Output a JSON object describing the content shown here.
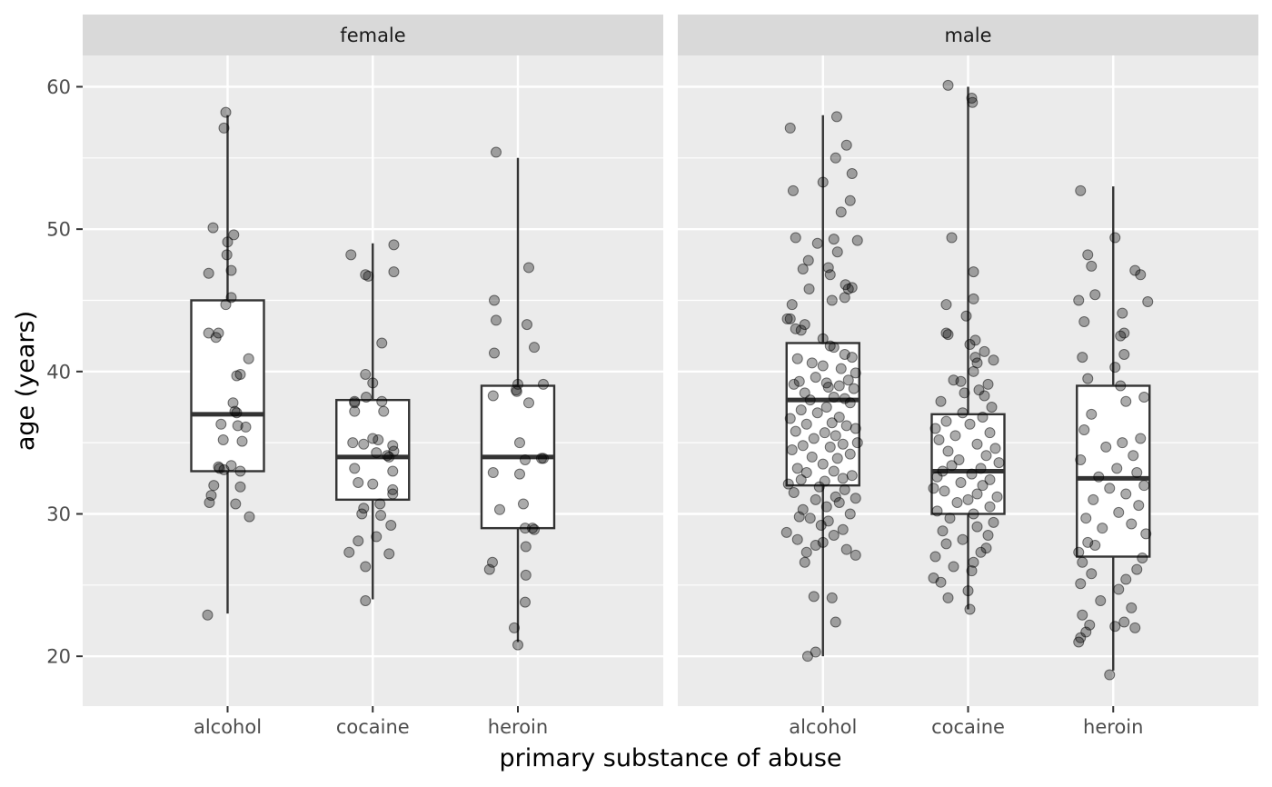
{
  "chart_data": {
    "type": "boxplot-jitter",
    "xlabel": "primary substance of abuse",
    "ylabel": "age (years)",
    "ylim": [
      16.5,
      62.2
    ],
    "yticks": [
      20,
      30,
      40,
      50,
      60
    ],
    "categories": [
      "alcohol",
      "cocaine",
      "heroin"
    ],
    "panels": [
      {
        "facet": "female",
        "boxes": [
          {
            "category": "alcohol",
            "whisker_low": 23,
            "q1": 33,
            "median": 37,
            "q3": 45,
            "whisker_high": 58
          },
          {
            "category": "cocaine",
            "whisker_low": 24,
            "q1": 31,
            "median": 34,
            "q3": 38,
            "whisker_high": 49
          },
          {
            "category": "heroin",
            "whisker_low": 21,
            "q1": 29,
            "median": 34,
            "q3": 39,
            "whisker_high": 55
          }
        ],
        "points": [
          {
            "category": "alcohol",
            "values": [
              58.2,
              57.1,
              50.1,
              49.6,
              49.1,
              48.2,
              47.1,
              46.9,
              45.2,
              44.7,
              42.7,
              42.7,
              42.4,
              40.9,
              39.8,
              39.7,
              37.8,
              37.2,
              37.1,
              36.3,
              36.2,
              36.1,
              35.2,
              35.1,
              33.4,
              33.3,
              33.2,
              33.1,
              33.0,
              32.0,
              31.9,
              31.3,
              30.8,
              30.7,
              29.8,
              22.9
            ],
            "offsets": [
              -0.05,
              -0.1,
              -0.4,
              0.17,
              0.0,
              -0.02,
              0.1,
              -0.52,
              0.1,
              -0.05,
              -0.52,
              -0.25,
              -0.32,
              0.58,
              0.35,
              0.25,
              0.15,
              0.2,
              0.25,
              -0.18,
              0.28,
              0.5,
              -0.12,
              0.4,
              0.1,
              -0.25,
              -0.22,
              -0.1,
              0.35,
              -0.38,
              0.35,
              -0.45,
              -0.5,
              0.22,
              0.6,
              -0.55
            ]
          },
          {
            "category": "cocaine",
            "values": [
              48.9,
              48.2,
              47.0,
              46.8,
              46.7,
              42.0,
              39.8,
              39.2,
              38.2,
              37.9,
              37.9,
              37.8,
              37.2,
              37.2,
              35.3,
              35.2,
              35.0,
              34.9,
              34.8,
              34.4,
              34.3,
              34.1,
              34.0,
              33.2,
              33.0,
              32.2,
              32.1,
              31.7,
              31.4,
              30.7,
              30.4,
              30.0,
              29.9,
              29.2,
              28.4,
              28.1,
              27.3,
              27.2,
              26.3,
              23.9
            ],
            "offsets": [
              0.58,
              -0.6,
              0.58,
              -0.2,
              -0.12,
              0.25,
              -0.2,
              0.0,
              -0.18,
              -0.5,
              0.25,
              -0.5,
              0.3,
              -0.5,
              0.0,
              0.15,
              -0.55,
              -0.25,
              0.55,
              0.58,
              0.1,
              0.4,
              0.45,
              -0.5,
              0.55,
              -0.4,
              0.0,
              0.55,
              0.55,
              0.2,
              -0.25,
              -0.3,
              0.22,
              0.5,
              0.1,
              -0.4,
              -0.65,
              0.45,
              -0.2,
              -0.2
            ],
            "note": "jittered points"
          },
          {
            "category": "heroin",
            "values": [
              55.4,
              47.3,
              45.0,
              43.6,
              43.3,
              41.7,
              41.3,
              39.1,
              39.1,
              38.7,
              38.6,
              38.3,
              37.8,
              35.0,
              33.9,
              33.9,
              33.8,
              32.9,
              32.8,
              30.7,
              30.3,
              29.0,
              29.0,
              28.9,
              27.7,
              26.6,
              26.1,
              25.7,
              23.8,
              22.0,
              20.8
            ],
            "offsets": [
              -0.6,
              0.3,
              -0.65,
              -0.6,
              0.25,
              0.45,
              -0.65,
              0.0,
              0.7,
              -0.05,
              -0.03,
              -0.68,
              0.3,
              0.05,
              0.65,
              0.7,
              0.2,
              -0.68,
              0.05,
              0.15,
              -0.5,
              0.2,
              0.4,
              0.45,
              0.22,
              -0.7,
              -0.78,
              0.22,
              0.2,
              -0.1,
              0.0
            ]
          }
        ]
      },
      {
        "facet": "male",
        "boxes": [
          {
            "category": "alcohol",
            "whisker_low": 20,
            "q1": 32,
            "median": 38,
            "q3": 42,
            "whisker_high": 58
          },
          {
            "category": "cocaine",
            "whisker_low": 23.3,
            "q1": 30,
            "median": 33,
            "q3": 37,
            "whisker_high": 60
          },
          {
            "category": "heroin",
            "whisker_low": 19,
            "q1": 27,
            "median": 32.5,
            "q3": 39,
            "whisker_high": 53
          }
        ],
        "points": [
          {
            "category": "alcohol",
            "values": [
              57.9,
              57.1,
              55.9,
              55.0,
              53.9,
              53.3,
              52.7,
              52.0,
              51.2,
              49.4,
              49.3,
              49.2,
              49.0,
              48.4,
              47.8,
              47.3,
              47.2,
              46.8,
              46.1,
              45.9,
              45.8,
              45.8,
              45.2,
              45.0,
              44.7,
              43.7,
              43.7,
              43.3,
              43.0,
              42.9,
              42.3,
              41.8,
              41.7,
              41.2,
              41.0,
              40.9,
              40.6,
              40.4,
              40.2,
              39.9,
              39.6,
              39.4,
              39.3,
              39.2,
              39.1,
              39.0,
              38.9,
              38.8,
              38.5,
              38.2,
              38.1,
              38.0,
              37.8,
              37.5,
              37.3,
              37.1,
              36.8,
              36.7,
              36.4,
              36.3,
              36.2,
              36.0,
              35.8,
              35.7,
              35.5,
              35.3,
              35.0,
              34.9,
              34.8,
              34.7,
              34.5,
              34.2,
              34.0,
              33.9,
              33.5,
              33.2,
              33.0,
              32.9,
              32.7,
              32.5,
              32.4,
              32.3,
              32.1,
              31.9,
              31.7,
              31.5,
              31.2,
              31.1,
              31.0,
              30.8,
              30.5,
              30.3,
              30.0,
              29.8,
              29.7,
              29.5,
              29.2,
              28.9,
              28.7,
              28.5,
              28.2,
              28.0,
              27.8,
              27.5,
              27.3,
              27.1,
              26.6,
              24.2,
              24.1,
              22.4,
              20.3,
              20.0
            ],
            "offsets": [
              0.38,
              -0.9,
              0.65,
              0.35,
              0.8,
              0.0,
              -0.82,
              0.75,
              0.5,
              -0.75,
              0.3,
              0.95,
              -0.15,
              0.4,
              -0.4,
              0.15,
              -0.55,
              0.2,
              0.62,
              0.8,
              0.7,
              -0.38,
              0.6,
              0.25,
              -0.85,
              -0.98,
              -0.9,
              -0.5,
              -0.75,
              -0.6,
              0.0,
              0.2,
              0.3,
              0.6,
              0.8,
              -0.7,
              -0.3,
              0.0,
              0.5,
              0.9,
              -0.2,
              0.7,
              -0.65,
              0.1,
              -0.8,
              0.45,
              0.15,
              0.85,
              -0.5,
              0.3,
              0.6,
              -0.35,
              0.75,
              0.1,
              -0.6,
              -0.15,
              0.45,
              -0.9,
              0.25,
              -0.45,
              0.65,
              0.9,
              -0.75,
              0.05,
              0.35,
              -0.25,
              0.95,
              0.55,
              -0.55,
              0.2,
              -0.85,
              0.75,
              -0.3,
              0.4,
              0.0,
              -0.7,
              0.3,
              -0.45,
              0.8,
              0.55,
              -0.6,
              0.05,
              -0.95,
              -0.1,
              0.6,
              -0.8,
              0.35,
              0.9,
              -0.2,
              0.45,
              0.1,
              -0.55,
              0.75,
              -0.65,
              -0.35,
              0.15,
              -0.05,
              0.55,
              -1.0,
              0.3,
              -0.7,
              0.0,
              -0.2,
              0.65,
              -0.45,
              0.9,
              -0.5,
              -0.25,
              0.25,
              0.35,
              -0.2,
              -0.42
            ],
            "note": "jittered points"
          },
          {
            "category": "cocaine",
            "values": [
              60.1,
              59.2,
              58.9,
              49.4,
              47.0,
              45.1,
              44.7,
              43.9,
              42.7,
              42.6,
              42.2,
              41.9,
              41.4,
              41.0,
              40.8,
              40.6,
              40.0,
              39.4,
              39.3,
              39.1,
              38.7,
              38.5,
              38.3,
              37.9,
              37.5,
              37.1,
              36.8,
              36.5,
              36.3,
              36.0,
              35.7,
              35.5,
              35.2,
              34.9,
              34.6,
              34.4,
              34.1,
              33.8,
              33.6,
              33.4,
              33.2,
              33.0,
              32.8,
              32.6,
              32.4,
              32.2,
              32.0,
              31.8,
              31.6,
              31.4,
              31.2,
              31.0,
              30.8,
              30.5,
              30.2,
              30.0,
              29.7,
              29.4,
              29.1,
              28.8,
              28.5,
              28.2,
              27.9,
              27.6,
              27.3,
              27.0,
              26.6,
              26.3,
              26.0,
              25.5,
              25.2,
              24.6,
              24.1,
              23.3
            ],
            "offsets": [
              -0.55,
              0.1,
              0.12,
              -0.45,
              0.15,
              0.15,
              -0.6,
              -0.05,
              -0.6,
              -0.55,
              0.2,
              0.05,
              0.45,
              0.2,
              0.7,
              0.25,
              0.15,
              -0.4,
              -0.2,
              0.55,
              0.3,
              -0.1,
              0.45,
              -0.75,
              0.65,
              -0.15,
              0.4,
              -0.6,
              0.05,
              -0.9,
              0.6,
              -0.35,
              -0.8,
              0.25,
              0.75,
              -0.55,
              0.5,
              -0.25,
              0.85,
              -0.45,
              0.35,
              -0.7,
              0.1,
              -0.85,
              0.6,
              -0.2,
              0.4,
              -0.95,
              -0.65,
              0.25,
              0.8,
              0.0,
              -0.3,
              0.6,
              -0.85,
              0.15,
              -0.5,
              0.7,
              0.25,
              -0.7,
              0.55,
              -0.15,
              -0.6,
              0.5,
              0.35,
              -0.9,
              0.15,
              -0.4,
              0.1,
              -0.95,
              -0.75,
              0.0,
              -0.55,
              0.05
            ],
            "note": "jittered points"
          },
          {
            "category": "heroin",
            "values": [
              52.7,
              49.4,
              48.2,
              47.4,
              47.1,
              46.8,
              45.4,
              45.0,
              44.9,
              44.1,
              43.5,
              42.7,
              42.5,
              41.2,
              41.0,
              40.3,
              39.5,
              39.0,
              38.2,
              37.9,
              37.0,
              35.9,
              35.3,
              35.0,
              34.7,
              34.1,
              33.8,
              33.2,
              32.9,
              32.6,
              32.0,
              31.8,
              31.4,
              31.0,
              30.6,
              30.1,
              29.7,
              29.3,
              29.0,
              28.6,
              28.0,
              27.8,
              27.3,
              26.9,
              26.6,
              26.1,
              25.8,
              25.4,
              25.1,
              24.7,
              23.9,
              23.4,
              22.9,
              22.4,
              22.2,
              22.1,
              22.0,
              21.7,
              21.3,
              21.0,
              18.7
            ],
            "offsets": [
              -0.9,
              0.05,
              -0.7,
              -0.6,
              0.6,
              0.75,
              -0.5,
              -0.95,
              0.95,
              0.25,
              -0.8,
              0.3,
              0.2,
              0.3,
              -0.85,
              0.05,
              -0.7,
              0.2,
              0.85,
              0.35,
              -0.6,
              -0.8,
              0.75,
              0.25,
              -0.2,
              0.55,
              -0.9,
              0.1,
              0.65,
              -0.4,
              0.85,
              -0.1,
              0.35,
              -0.55,
              0.7,
              0.15,
              -0.75,
              0.5,
              -0.3,
              0.9,
              -0.7,
              -0.5,
              -0.95,
              0.8,
              -0.85,
              0.65,
              -0.6,
              0.35,
              -0.9,
              0.15,
              -0.35,
              0.5,
              -0.85,
              0.3,
              -0.65,
              0.05,
              0.6,
              -0.75,
              -0.9,
              -0.95,
              -0.1
            ],
            "note": "jittered points"
          }
        ]
      }
    ]
  }
}
